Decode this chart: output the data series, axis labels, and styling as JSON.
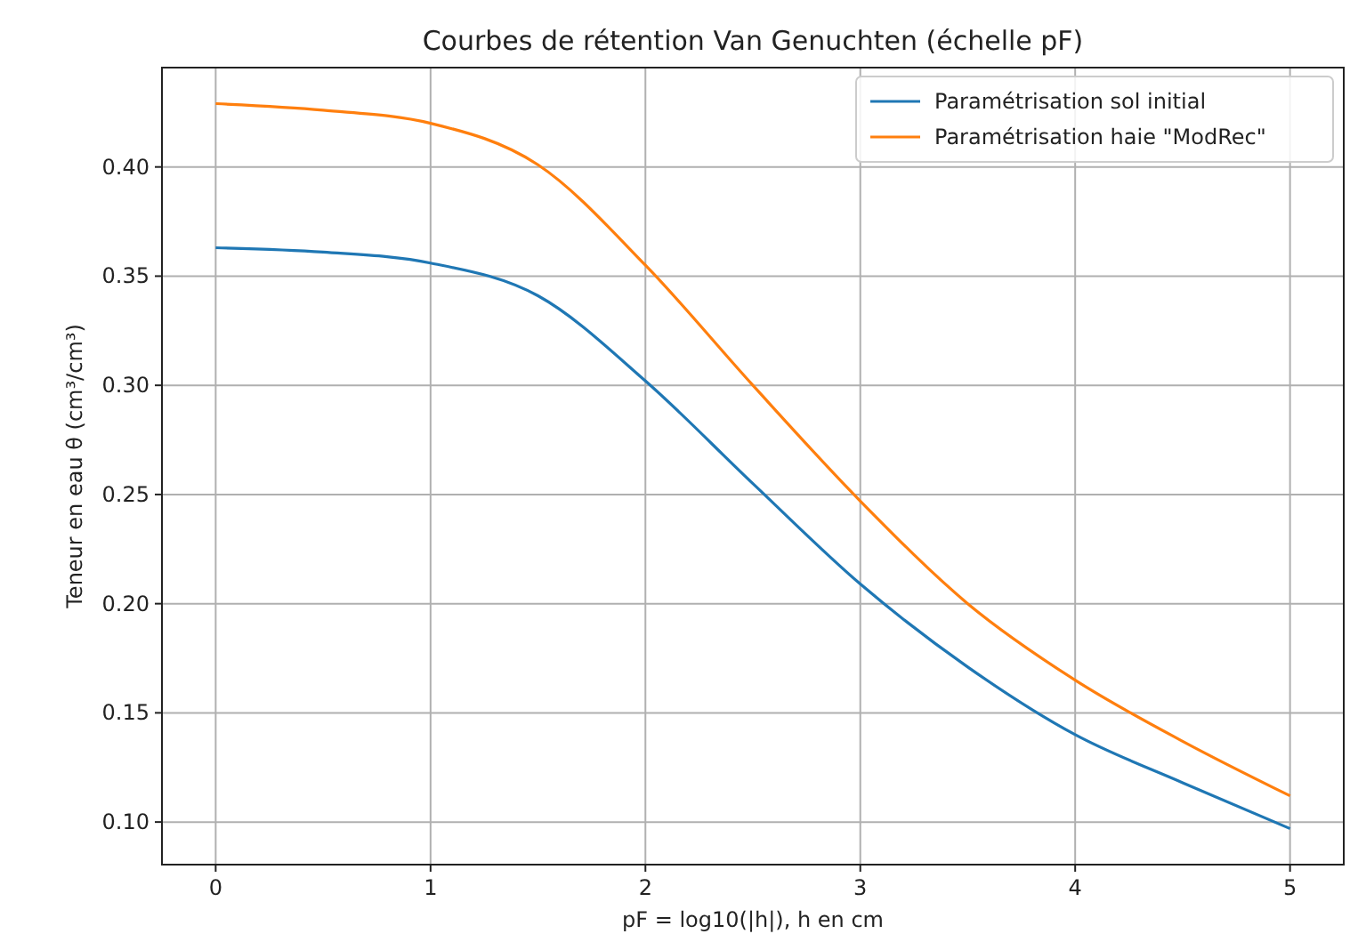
{
  "chart_data": {
    "type": "line",
    "title": "Courbes de rétention Van Genuchten (échelle pF)",
    "xlabel": "pF = log10(|h|), h en cm",
    "ylabel": "Teneur en eau θ (cm³/cm³)",
    "x": [
      0,
      0.5,
      1,
      1.5,
      2,
      2.5,
      3,
      3.5,
      4,
      4.5,
      5
    ],
    "series": [
      {
        "name": "Paramétrisation sol initial",
        "color": "#1f77b4",
        "values": [
          0.363,
          0.361,
          0.356,
          0.341,
          0.302,
          0.255,
          0.209,
          0.171,
          0.14,
          0.118,
          0.097
        ]
      },
      {
        "name": "Paramétrisation haie \"ModRec\"",
        "color": "#ff7f0e",
        "values": [
          0.429,
          0.426,
          0.42,
          0.401,
          0.355,
          0.3,
          0.247,
          0.2,
          0.165,
          0.137,
          0.112
        ]
      }
    ],
    "xlim": [
      -0.25,
      5.25
    ],
    "ylim": [
      0.0805,
      0.4455
    ],
    "xticks": [
      0,
      1,
      2,
      3,
      4,
      5
    ],
    "yticks": [
      {
        "value": 0.1,
        "label": "0.10"
      },
      {
        "value": 0.15,
        "label": "0.15"
      },
      {
        "value": 0.2,
        "label": "0.20"
      },
      {
        "value": 0.25,
        "label": "0.25"
      },
      {
        "value": 0.3,
        "label": "0.30"
      },
      {
        "value": 0.35,
        "label": "0.35"
      },
      {
        "value": 0.4,
        "label": "0.40"
      }
    ],
    "grid": true,
    "legend": "top right",
    "marker": "none",
    "line_style": "solid"
  }
}
